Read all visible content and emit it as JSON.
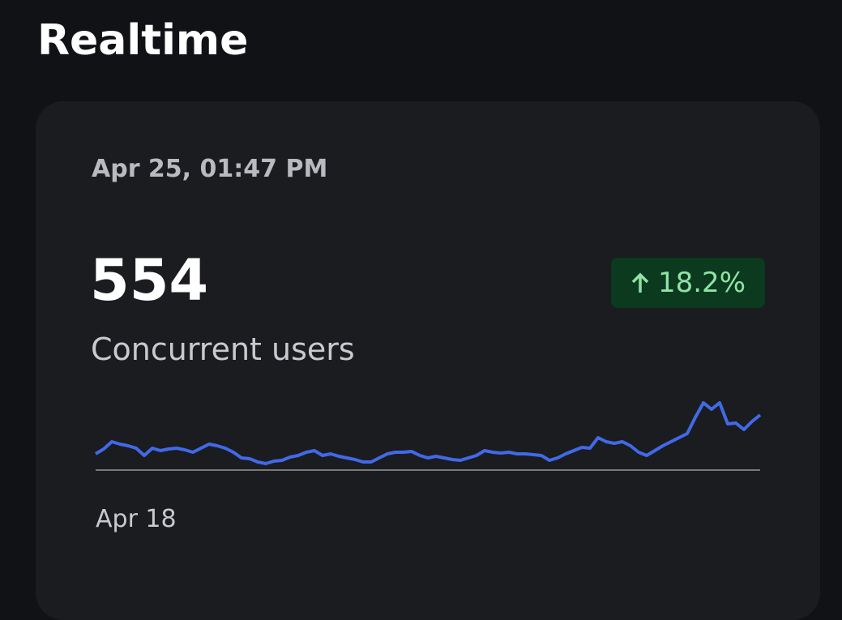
{
  "header": {
    "title": "Realtime"
  },
  "card": {
    "timestamp": "Apr 25, 01:47 PM",
    "value": 554,
    "change": "18.2%",
    "label": "Concurrent users",
    "sparkline": {
      "type": "line",
      "color": "#4169e8",
      "start_label": "Apr 18",
      "values": [
        20,
        26,
        35,
        32,
        30,
        27,
        18,
        27,
        24,
        26,
        27,
        25,
        22,
        27,
        32,
        30,
        27,
        22,
        15,
        14,
        10,
        8,
        11,
        12,
        16,
        18,
        22,
        24,
        18,
        20,
        17,
        15,
        13,
        10,
        10,
        15,
        20,
        22,
        22,
        23,
        18,
        15,
        17,
        15,
        13,
        12,
        15,
        18,
        24,
        22,
        21,
        22,
        20,
        20,
        19,
        18,
        12,
        15,
        20,
        24,
        28,
        27,
        40,
        35,
        33,
        35,
        30,
        22,
        18,
        24,
        30,
        35,
        40,
        45,
        65,
        83,
        75,
        83,
        57,
        58,
        50,
        60,
        68
      ]
    }
  }
}
